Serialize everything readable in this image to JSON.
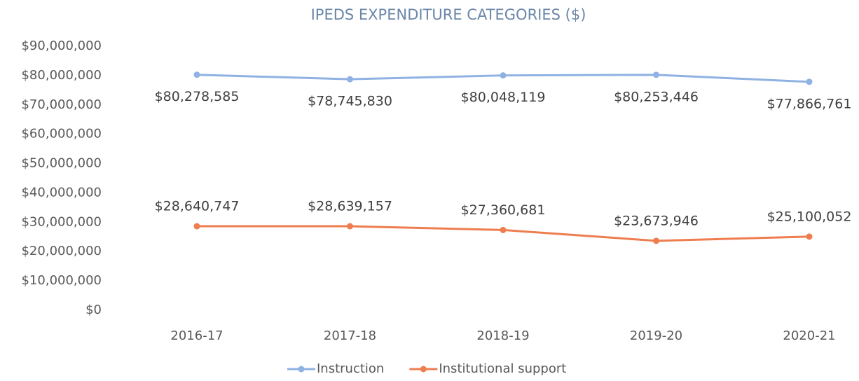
{
  "chart_data": {
    "type": "line",
    "title": "IPEDS EXPENDITURE CATEGORIES ($)",
    "categories": [
      "2016-17",
      "2017-18",
      "2018-19",
      "2019-20",
      "2020-21"
    ],
    "series": [
      {
        "name": "Instruction",
        "color": "#8fb2e3",
        "values": [
          80278585,
          78745830,
          80048119,
          80253446,
          77866761
        ],
        "value_labels": [
          "$80,278,585",
          "$78,745,830",
          "$80,048,119",
          "$80,253,446",
          "$77,866,761"
        ]
      },
      {
        "name": "Institutional support",
        "color": "#ee7d50",
        "values": [
          28640747,
          28639157,
          27360681,
          23673946,
          25100052
        ],
        "value_labels": [
          "$28,640,747",
          "$28,639,157",
          "$27,360,681",
          "$23,673,946",
          "$25,100,052"
        ]
      }
    ],
    "ylim": [
      0,
      90000000
    ],
    "yticks": [
      {
        "value": 0,
        "label": "$0"
      },
      {
        "value": 10000000,
        "label": "$10,000,000"
      },
      {
        "value": 20000000,
        "label": "$20,000,000"
      },
      {
        "value": 30000000,
        "label": "$30,000,000"
      },
      {
        "value": 40000000,
        "label": "$40,000,000"
      },
      {
        "value": 50000000,
        "label": "$50,000,000"
      },
      {
        "value": 60000000,
        "label": "$60,000,000"
      },
      {
        "value": 70000000,
        "label": "$70,000,000"
      },
      {
        "value": 80000000,
        "label": "$80,000,000"
      },
      {
        "value": 90000000,
        "label": "$90,000,000"
      }
    ],
    "grid": false,
    "legend": "bottom"
  }
}
